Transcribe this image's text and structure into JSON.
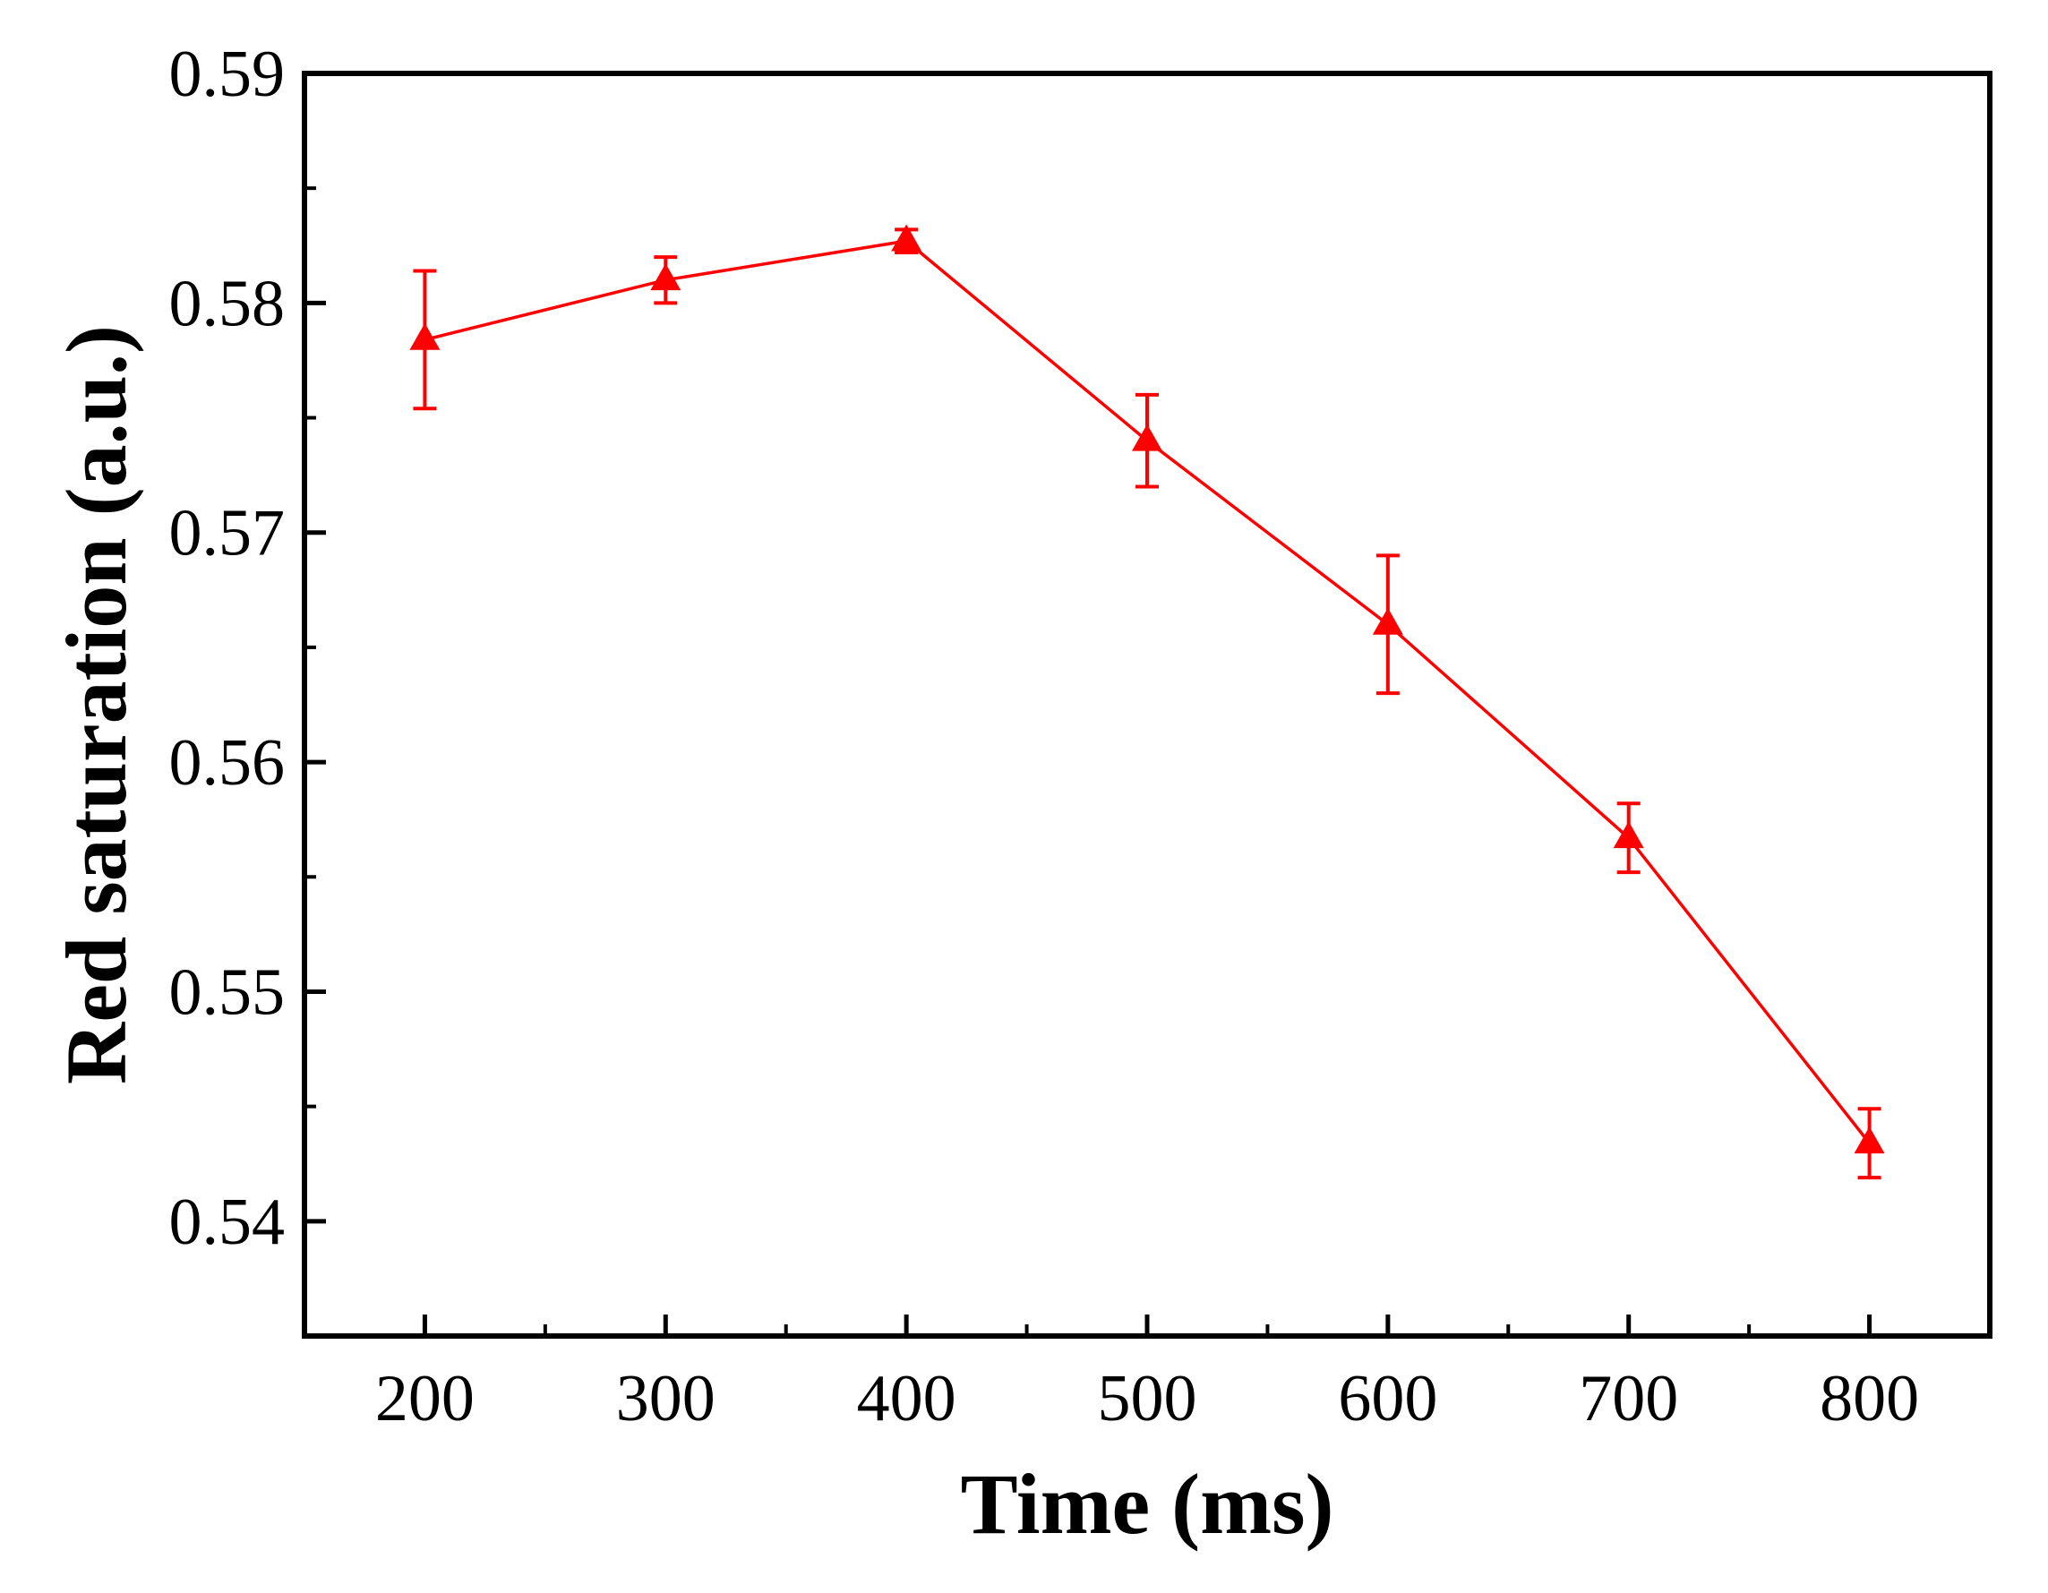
{
  "chart_data": {
    "type": "line",
    "title": "",
    "xlabel": "Time (ms)",
    "ylabel": "Red saturation (a.u.)",
    "xlim": [
      150,
      850
    ],
    "ylim": [
      0.535,
      0.59
    ],
    "x_ticks": [
      200,
      300,
      400,
      500,
      600,
      700,
      800
    ],
    "x_tick_labels": [
      "200",
      "300",
      "400",
      "500",
      "600",
      "700",
      "800"
    ],
    "y_ticks": [
      0.54,
      0.55,
      0.56,
      0.57,
      0.58,
      0.59
    ],
    "y_tick_labels": [
      "0.54",
      "0.55",
      "0.56",
      "0.57",
      "0.58",
      "0.59"
    ],
    "grid": false,
    "series": [
      {
        "name": "Red saturation",
        "color": "#ff0000",
        "marker": "triangle-up",
        "x": [
          200,
          300,
          400,
          500,
          600,
          700,
          800
        ],
        "y": [
          0.5784,
          0.581,
          0.5827,
          0.574,
          0.566,
          0.5567,
          0.5434
        ],
        "error": [
          0.003,
          0.001,
          0.0005,
          0.002,
          0.003,
          0.0015,
          0.0015
        ]
      }
    ]
  }
}
